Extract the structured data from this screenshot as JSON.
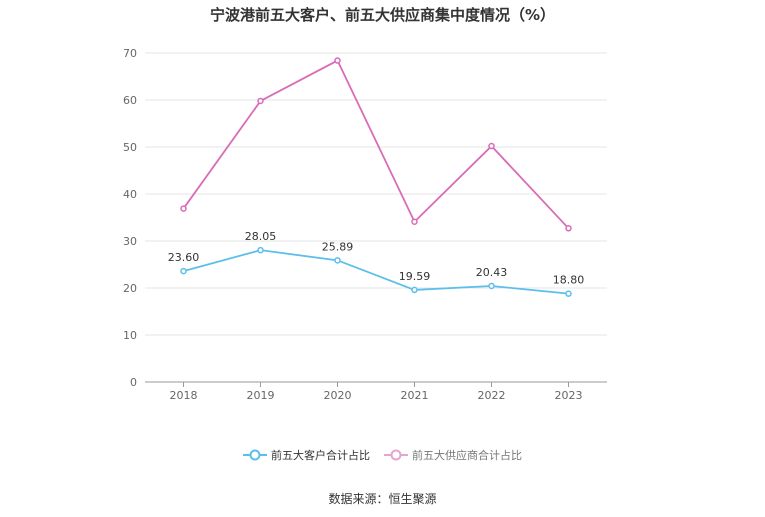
{
  "chart_data": {
    "type": "line",
    "title": "宁波港前五大客户、前五大供应商集中度情况（%）",
    "categories": [
      "2018",
      "2019",
      "2020",
      "2021",
      "2022",
      "2023"
    ],
    "ylim": [
      0,
      70
    ],
    "yticks": [
      "0",
      "10",
      "20",
      "30",
      "40",
      "50",
      "60",
      "70"
    ],
    "grid": true,
    "legend_position": "bottom",
    "series": [
      {
        "name": "前五大客户合计占比",
        "color": "#5bbfea",
        "values": [
          23.6,
          28.05,
          25.89,
          19.59,
          20.43,
          18.8
        ],
        "labels": [
          "23.60",
          "28.05",
          "25.89",
          "19.59",
          "20.43",
          "18.80"
        ],
        "show_labels": true
      },
      {
        "name": "前五大供应商合计占比",
        "color": "#d96cb6",
        "values": [
          36.9,
          59.8,
          68.4,
          34.1,
          50.2,
          32.7
        ],
        "show_labels": false
      }
    ],
    "source": "数据来源：恒生聚源"
  }
}
